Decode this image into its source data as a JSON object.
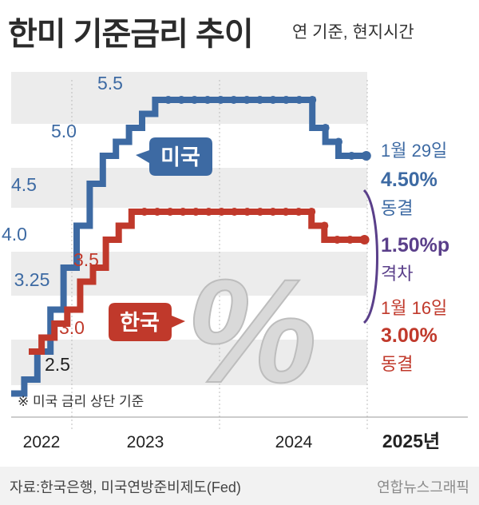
{
  "title": "한미 기준금리 추이",
  "subtitle": "연 기준, 현지시간",
  "note": "※ 미국 금리 상단 기준",
  "source": "자료:한국은행, 미국연방준비제도(Fed)",
  "credit": "연합뉴스그래픽",
  "colors": {
    "us": "#3d6aa3",
    "kr": "#c0392b",
    "gap": "#5a3f8a",
    "band": "#ececec"
  },
  "chart_data": {
    "type": "line",
    "x_ticks": [
      "2022",
      "2023",
      "2024",
      "2025년"
    ],
    "series": [
      {
        "name": "미국",
        "values": [
          0.25,
          0.5,
          1.0,
          1.75,
          2.5,
          3.25,
          4.0,
          4.5,
          4.75,
          5.0,
          5.25,
          5.5,
          5.5,
          5.5,
          5.5,
          5.5,
          5.5,
          5.5,
          5.5,
          5.5,
          5.5,
          5.5,
          5.5,
          5.0,
          4.75,
          4.5,
          4.5
        ],
        "step_labels": [
          "3.25",
          "4.0",
          "4.5",
          "5.0",
          "5.5"
        ]
      },
      {
        "name": "한국",
        "values": [
          1.0,
          1.25,
          1.5,
          1.75,
          2.25,
          2.5,
          3.0,
          3.25,
          3.5,
          3.5,
          3.5,
          3.5,
          3.5,
          3.5,
          3.5,
          3.5,
          3.5,
          3.5,
          3.5,
          3.5,
          3.5,
          3.5,
          3.25,
          3.0,
          3.0,
          3.0
        ],
        "step_labels": [
          "2.5",
          "3.0",
          "3.5"
        ]
      }
    ],
    "annotations": {
      "us_latest": {
        "date": "1월 29일",
        "rate": "4.50%",
        "status": "동결"
      },
      "gap": {
        "value": "1.50%p",
        "label": "격차"
      },
      "kr_latest": {
        "date": "1월 16일",
        "rate": "3.00%",
        "status": "동결"
      }
    },
    "decoration": "%"
  }
}
